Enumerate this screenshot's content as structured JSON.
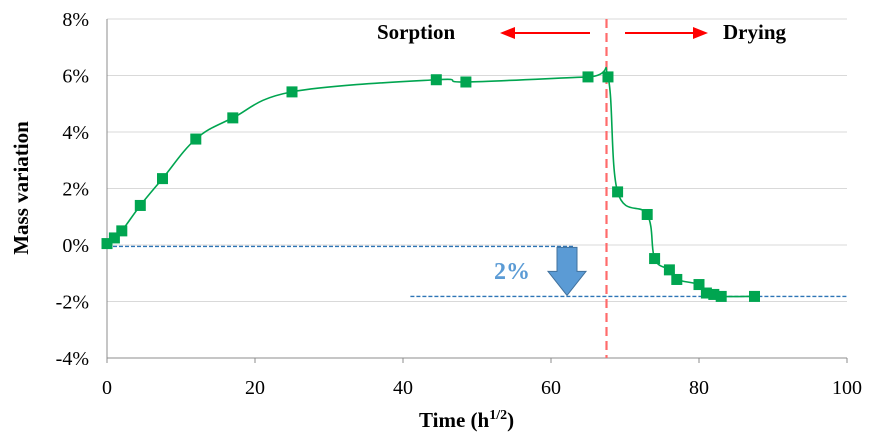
{
  "chart_data": {
    "type": "line",
    "xlabel": "Time (h",
    "xlabel_sup": "1/2",
    "xlabel_tail": ")",
    "ylabel": "Mass variation",
    "xlim": [
      0,
      100
    ],
    "ylim": [
      -4,
      8
    ],
    "x_ticks": [
      0,
      20,
      40,
      60,
      80,
      100
    ],
    "y_ticks": [
      -4,
      -2,
      0,
      2,
      4,
      6,
      8
    ],
    "y_tick_labels": [
      "-4%",
      "-2%",
      "0%",
      "2%",
      "4%",
      "6%",
      "8%"
    ],
    "grid": "horizontal",
    "series": [
      {
        "color": "#00a550",
        "marker": "square",
        "points": [
          [
            0,
            0.05
          ],
          [
            1,
            0.25
          ],
          [
            2,
            0.5
          ],
          [
            4.5,
            1.4
          ],
          [
            7.5,
            2.35
          ],
          [
            12,
            3.75
          ],
          [
            17,
            4.5
          ],
          [
            25,
            5.42
          ],
          [
            44.5,
            5.85
          ],
          [
            48.5,
            5.77
          ],
          [
            65,
            5.95
          ],
          [
            67.7,
            5.95
          ],
          [
            69,
            1.88
          ],
          [
            73,
            1.08
          ],
          [
            74,
            -0.48
          ],
          [
            76,
            -0.88
          ],
          [
            77,
            -1.22
          ],
          [
            80,
            -1.4
          ],
          [
            81,
            -1.7
          ],
          [
            82,
            -1.75
          ],
          [
            83,
            -1.82
          ],
          [
            87.5,
            -1.82
          ]
        ]
      }
    ],
    "annotations": {
      "sorption_label": "Sorption",
      "drying_label": "Drying",
      "delta_label": "2%",
      "divider_x": 67.5,
      "ref_line_upper_y": -0.05,
      "ref_line_upper_x": [
        0,
        63
      ],
      "ref_line_lower_y": -1.82,
      "ref_line_lower_x": [
        41,
        100
      ]
    },
    "colors": {
      "series": "#00a550",
      "divider": "#ff6b6b",
      "arrow": "#ff0000",
      "ref_line": "#2e75b6",
      "delta_arrow": "#5b9bd5",
      "grid": "#d9d9d9"
    }
  }
}
